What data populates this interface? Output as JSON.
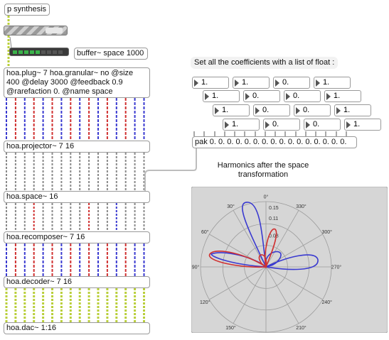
{
  "objects": {
    "synthesis": "p synthesis",
    "buffer": "buffer~ space 1000",
    "plug": "hoa.plug~ 7 hoa.granular~ no @size 400 @delay 3000 @feedback 0.9 @rarefaction 0. @name space",
    "projector": "hoa.projector~ 7 16",
    "space": "hoa.space~ 16",
    "recomposer": "hoa.recomposer~ 7 16",
    "decoder": "hoa.decoder~ 7 16",
    "dac": "hoa.dac~ 1:16",
    "pak": "pak 0. 0. 0. 0. 0. 0. 0. 0. 0. 0. 0. 0. 0. 0. 0. 0."
  },
  "comments": {
    "coefficients": "Set all the coefficients with a list of float :",
    "harmonics": "Harmonics after the space transformation"
  },
  "number_boxes": [
    [
      "1.",
      "1.",
      "0.",
      "1."
    ],
    [
      "1.",
      "0.",
      "0.",
      "1."
    ],
    [
      "1.",
      "0.",
      "0.",
      "1."
    ],
    [
      "1.",
      "0.",
      "0.",
      "1."
    ]
  ],
  "polar_plot": {
    "angle_labels": [
      "0°",
      "30°",
      "60°",
      "90°",
      "120°",
      "150°",
      "180°",
      "210°",
      "240°",
      "270°",
      "300°",
      "330°"
    ],
    "radius_labels": [
      "0.15",
      "0.11",
      "0.08"
    ]
  },
  "colors": {
    "signal_blue": "#3a3ad0",
    "signal_red": "#d03030",
    "signal_gray": "#8a8a8a",
    "audio_patch": "#b9cf3a",
    "plot_background": "#d6d6d6"
  }
}
